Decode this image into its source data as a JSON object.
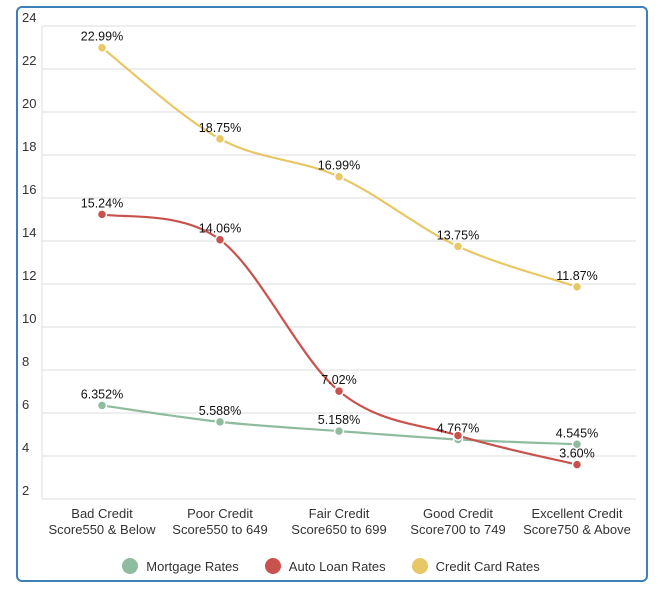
{
  "chart_data": {
    "type": "line",
    "categories": [
      [
        "Bad Credit",
        "Score550 & Below"
      ],
      [
        "Poor Credit",
        "Score550 to 649"
      ],
      [
        "Fair Credit",
        "Score650 to 699"
      ],
      [
        "Good Credit",
        "Score700 to 749"
      ],
      [
        "Excellent Credit",
        "Score750 & Above"
      ]
    ],
    "ylim": [
      2,
      24
    ],
    "yticks": [
      2,
      4,
      6,
      8,
      10,
      12,
      14,
      16,
      18,
      20,
      22,
      24
    ],
    "grid": true,
    "legend_position": "bottom",
    "series": [
      {
        "name": "Mortgage Rates",
        "color": "#8fbc9f",
        "values": [
          6.352,
          5.588,
          5.158,
          4.767,
          4.545
        ],
        "labels": [
          "6.352%",
          "5.588%",
          "5.158%",
          "4.767%",
          "4.545%"
        ]
      },
      {
        "name": "Auto Loan Rates",
        "color": "#c8524d",
        "values": [
          15.24,
          14.06,
          7.02,
          4.95,
          3.6
        ],
        "labels": [
          "15.24%",
          "14.06%",
          "7.02%",
          "",
          "3.60%"
        ]
      },
      {
        "name": "Credit Card Rates",
        "color": "#e8c766",
        "values": [
          22.99,
          18.75,
          16.99,
          13.75,
          11.87
        ],
        "labels": [
          "22.99%",
          "18.75%",
          "16.99%",
          "13.75%",
          "11.87%"
        ]
      }
    ]
  }
}
